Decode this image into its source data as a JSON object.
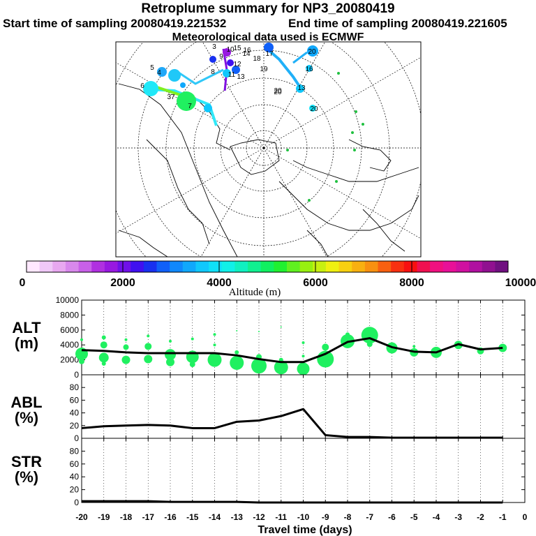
{
  "header": {
    "title": "Retroplume summary for NP3_20080419",
    "start": "Start time of sampling 20080419.221532",
    "end": "End time of sampling 20080419.221605",
    "met": "Meteorological data used is ECMWF"
  },
  "map": {
    "labels": [
      "3",
      "5",
      "4",
      "6",
      "37",
      "7",
      "8",
      "9",
      "10",
      "11",
      "12",
      "13",
      "14",
      "15",
      "16",
      "17",
      "18",
      "19",
      "20"
    ]
  },
  "colorbar": {
    "title": "Altitude (m)",
    "ticks": [
      "0",
      "2000",
      "4000",
      "6000",
      "8000",
      "10000"
    ],
    "colors": [
      "#ffe8ff",
      "#f0c8f8",
      "#e8a8f0",
      "#d888ec",
      "#c860e8",
      "#b030e0",
      "#9818e0",
      "#7010e8",
      "#4010f0",
      "#1830f0",
      "#1060f8",
      "#1088fc",
      "#10a8fc",
      "#10c8fc",
      "#10e0f8",
      "#10f0e8",
      "#10f0c0",
      "#10f090",
      "#10f060",
      "#20f030",
      "#60f020",
      "#98f010",
      "#c8f010",
      "#f0f010",
      "#f8d010",
      "#f8b010",
      "#f89010",
      "#f86010",
      "#f83010",
      "#f81010",
      "#f01050",
      "#f01080",
      "#e81098",
      "#d010a0",
      "#b010a0",
      "#901090",
      "#701080"
    ]
  },
  "chart_data": [
    {
      "type": "line",
      "name": "ALT",
      "ylabel_short": "ALT",
      "ylabel_unit": "(m)",
      "ylim": [
        0,
        10000
      ],
      "yticks": [
        0,
        2000,
        4000,
        6000,
        8000,
        10000
      ],
      "x": [
        -20,
        -19,
        -18,
        -17,
        -16,
        -15,
        -14,
        -13,
        -12,
        -11,
        -10,
        -9,
        -8,
        -7,
        -6,
        -5,
        -4,
        -3,
        -2,
        -1
      ],
      "values": [
        3300,
        3200,
        3000,
        2900,
        2900,
        2900,
        2900,
        2600,
        2100,
        1700,
        1700,
        2800,
        4400,
        4900,
        3700,
        3100,
        3000,
        4100,
        3400,
        3600
      ],
      "scatter": [
        {
          "x": -20,
          "y": 2800,
          "r": 9
        },
        {
          "x": -20,
          "y": 4700,
          "r": 2
        },
        {
          "x": -20,
          "y": 1800,
          "r": 4
        },
        {
          "x": -19,
          "y": 4000,
          "r": 5
        },
        {
          "x": -19,
          "y": 2300,
          "r": 7
        },
        {
          "x": -19,
          "y": 5000,
          "r": 3
        },
        {
          "x": -19,
          "y": 1500,
          "r": 3
        },
        {
          "x": -18,
          "y": 3700,
          "r": 4
        },
        {
          "x": -18,
          "y": 2000,
          "r": 6
        },
        {
          "x": -18,
          "y": 4700,
          "r": 2
        },
        {
          "x": -17,
          "y": 3800,
          "r": 5
        },
        {
          "x": -17,
          "y": 2100,
          "r": 6
        },
        {
          "x": -17,
          "y": 5200,
          "r": 2
        },
        {
          "x": -16,
          "y": 2700,
          "r": 8
        },
        {
          "x": -16,
          "y": 1700,
          "r": 6
        },
        {
          "x": -16,
          "y": 4500,
          "r": 2
        },
        {
          "x": -15,
          "y": 2400,
          "r": 9
        },
        {
          "x": -15,
          "y": 1400,
          "r": 4
        },
        {
          "x": -15,
          "y": 4800,
          "r": 2
        },
        {
          "x": -14,
          "y": 2000,
          "r": 10
        },
        {
          "x": -14,
          "y": 4000,
          "r": 2
        },
        {
          "x": -14,
          "y": 5400,
          "r": 2
        },
        {
          "x": -13,
          "y": 1600,
          "r": 10
        },
        {
          "x": -13,
          "y": 3000,
          "r": 3
        },
        {
          "x": -13,
          "y": 5900,
          "r": 1
        },
        {
          "x": -12,
          "y": 1200,
          "r": 11
        },
        {
          "x": -12,
          "y": 2400,
          "r": 4
        },
        {
          "x": -12,
          "y": 5800,
          "r": 1
        },
        {
          "x": -11,
          "y": 1000,
          "r": 10
        },
        {
          "x": -11,
          "y": 2000,
          "r": 3
        },
        {
          "x": -11,
          "y": 6400,
          "r": 1
        },
        {
          "x": -10,
          "y": 800,
          "r": 9
        },
        {
          "x": -10,
          "y": 4300,
          "r": 2
        },
        {
          "x": -10,
          "y": 2500,
          "r": 2
        },
        {
          "x": -9,
          "y": 2100,
          "r": 12
        },
        {
          "x": -9,
          "y": 3700,
          "r": 5
        },
        {
          "x": -8,
          "y": 4500,
          "r": 10
        },
        {
          "x": -8,
          "y": 5400,
          "r": 3
        },
        {
          "x": -7,
          "y": 5300,
          "r": 12
        },
        {
          "x": -7,
          "y": 4100,
          "r": 4
        },
        {
          "x": -6,
          "y": 3600,
          "r": 8
        },
        {
          "x": -5,
          "y": 3000,
          "r": 6
        },
        {
          "x": -5,
          "y": 3800,
          "r": 2
        },
        {
          "x": -4,
          "y": 3000,
          "r": 8
        },
        {
          "x": -3,
          "y": 4000,
          "r": 6
        },
        {
          "x": -2,
          "y": 3200,
          "r": 5
        },
        {
          "x": -1,
          "y": 3600,
          "r": 6
        }
      ]
    },
    {
      "type": "line",
      "name": "ABL",
      "ylabel_short": "ABL",
      "ylabel_unit": "(%)",
      "ylim": [
        0,
        100
      ],
      "yticks": [
        0,
        20,
        40,
        60,
        80
      ],
      "x": [
        -20,
        -19,
        -18,
        -17,
        -16,
        -15,
        -14,
        -13,
        -12,
        -11,
        -10,
        -9,
        -8,
        -7,
        -6,
        -5,
        -4,
        -3,
        -2,
        -1
      ],
      "values": [
        16,
        19,
        20,
        21,
        20,
        16,
        16,
        26,
        28,
        35,
        46,
        5,
        2,
        2,
        1,
        1,
        1,
        1,
        1,
        1
      ]
    },
    {
      "type": "line",
      "name": "STR",
      "ylabel_short": "STR",
      "ylabel_unit": "(%)",
      "ylim": [
        0,
        100
      ],
      "yticks": [
        0,
        20,
        40,
        60,
        80
      ],
      "x": [
        -20,
        -19,
        -18,
        -17,
        -16,
        -15,
        -14,
        -13,
        -12,
        -11,
        -10,
        -9,
        -8,
        -7,
        -6,
        -5,
        -4,
        -3,
        -2,
        -1
      ],
      "values": [
        2,
        2,
        2,
        2,
        1,
        1,
        1,
        1,
        0,
        0,
        0,
        0,
        0,
        0,
        0,
        0,
        0,
        0,
        0,
        0
      ]
    }
  ],
  "xaxis": {
    "ticks": [
      "-20",
      "-19",
      "-18",
      "-17",
      "-16",
      "-15",
      "-14",
      "-13",
      "-12",
      "-11",
      "-10",
      "-9",
      "-8",
      "-7",
      "-6",
      "-5",
      "-4",
      "-3",
      "-2",
      "-1",
      "0"
    ],
    "label": "Travel time (days)"
  }
}
